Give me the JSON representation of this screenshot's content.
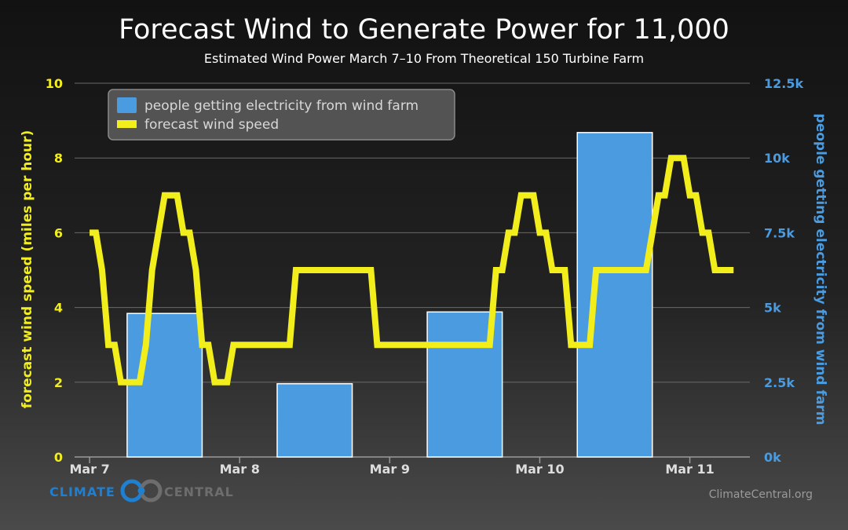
{
  "chart_data": {
    "type": "bar+line",
    "title": "Forecast Wind to Generate Power for 11,000",
    "subtitle": "Estimated Wind Power March 7–10 From Theoretical 150 Turbine Farm",
    "left_axis": {
      "label": "forecast wind speed (miles per hour)",
      "range": [
        0,
        10
      ],
      "ticks": [
        "0",
        "2",
        "4",
        "6",
        "8",
        "10"
      ],
      "color": "#f2ee1c"
    },
    "right_axis": {
      "label": "people getting electricity from wind farm",
      "range": [
        0,
        12500
      ],
      "ticks": [
        "0k",
        "2.5k",
        "5k",
        "7.5k",
        "10k",
        "12.5k"
      ],
      "color": "#4a9be0"
    },
    "x_axis": {
      "range_days": [
        6.9,
        11.4
      ],
      "ticks": [
        "Mar 7",
        "Mar 8",
        "Mar 9",
        "Mar 10",
        "Mar 11"
      ]
    },
    "grid": true,
    "legend": {
      "placement": "top-left",
      "items": [
        {
          "label": "people getting electricity from wind farm",
          "kind": "bar",
          "color": "#4a9be0"
        },
        {
          "label": "forecast wind speed",
          "kind": "line",
          "color": "#f2ee1c"
        }
      ]
    },
    "bars": {
      "name": "people getting electricity from wind farm",
      "color": "#4a9be0",
      "items": [
        {
          "start": "Mar 7 06:00",
          "end": "Mar 7 18:00",
          "value": 4800
        },
        {
          "start": "Mar 8 06:00",
          "end": "Mar 8 18:00",
          "value": 2450
        },
        {
          "start": "Mar 9 06:00",
          "end": "Mar 9 18:00",
          "value": 4850
        },
        {
          "start": "Mar 10 06:00",
          "end": "Mar 10 18:00",
          "value": 10850
        }
      ]
    },
    "line": {
      "name": "forecast wind speed",
      "color": "#f2ee1c",
      "points": [
        {
          "t": "Mar 7 00:00",
          "v": 6
        },
        {
          "t": "Mar 7 01:00",
          "v": 6
        },
        {
          "t": "Mar 7 02:00",
          "v": 5
        },
        {
          "t": "Mar 7 03:00",
          "v": 3
        },
        {
          "t": "Mar 7 04:00",
          "v": 3
        },
        {
          "t": "Mar 7 05:00",
          "v": 2
        },
        {
          "t": "Mar 7 07:00",
          "v": 2
        },
        {
          "t": "Mar 7 08:00",
          "v": 2
        },
        {
          "t": "Mar 7 09:00",
          "v": 3
        },
        {
          "t": "Mar 7 10:00",
          "v": 5
        },
        {
          "t": "Mar 7 11:00",
          "v": 6
        },
        {
          "t": "Mar 7 12:00",
          "v": 7
        },
        {
          "t": "Mar 7 14:00",
          "v": 7
        },
        {
          "t": "Mar 7 15:00",
          "v": 6
        },
        {
          "t": "Mar 7 16:00",
          "v": 6
        },
        {
          "t": "Mar 7 17:00",
          "v": 5
        },
        {
          "t": "Mar 7 18:00",
          "v": 3
        },
        {
          "t": "Mar 7 19:00",
          "v": 3
        },
        {
          "t": "Mar 7 20:00",
          "v": 2
        },
        {
          "t": "Mar 7 22:00",
          "v": 2
        },
        {
          "t": "Mar 7 23:00",
          "v": 3
        },
        {
          "t": "Mar 8 08:00",
          "v": 3
        },
        {
          "t": "Mar 8 09:00",
          "v": 5
        },
        {
          "t": "Mar 8 21:00",
          "v": 5
        },
        {
          "t": "Mar 8 22:00",
          "v": 3
        },
        {
          "t": "Mar 9 16:00",
          "v": 3
        },
        {
          "t": "Mar 9 17:00",
          "v": 5
        },
        {
          "t": "Mar 9 18:00",
          "v": 5
        },
        {
          "t": "Mar 9 19:00",
          "v": 6
        },
        {
          "t": "Mar 9 20:00",
          "v": 6
        },
        {
          "t": "Mar 9 21:00",
          "v": 7
        },
        {
          "t": "Mar 9 23:00",
          "v": 7
        },
        {
          "t": "Mar 10 00:00",
          "v": 6
        },
        {
          "t": "Mar 10 01:00",
          "v": 6
        },
        {
          "t": "Mar 10 02:00",
          "v": 5
        },
        {
          "t": "Mar 10 04:00",
          "v": 5
        },
        {
          "t": "Mar 10 05:00",
          "v": 3
        },
        {
          "t": "Mar 10 08:00",
          "v": 3
        },
        {
          "t": "Mar 10 09:00",
          "v": 5
        },
        {
          "t": "Mar 10 17:00",
          "v": 5
        },
        {
          "t": "Mar 10 18:00",
          "v": 6
        },
        {
          "t": "Mar 10 19:00",
          "v": 7
        },
        {
          "t": "Mar 10 20:00",
          "v": 7
        },
        {
          "t": "Mar 10 21:00",
          "v": 8
        },
        {
          "t": "Mar 10 23:00",
          "v": 8
        },
        {
          "t": "Mar 11 00:00",
          "v": 7
        },
        {
          "t": "Mar 11 01:00",
          "v": 7
        },
        {
          "t": "Mar 11 02:00",
          "v": 6
        },
        {
          "t": "Mar 11 03:00",
          "v": 6
        },
        {
          "t": "Mar 11 04:00",
          "v": 5
        },
        {
          "t": "Mar 11 07:00",
          "v": 5
        }
      ]
    }
  },
  "branding": {
    "logo_left": "CLIMATE",
    "logo_right": "CENTRAL",
    "website": "ClimateCentral.org"
  },
  "colors": {
    "wind_line": "#f2ee1c",
    "bars": "#4a9be0",
    "logo_blue": "#1f7fd1",
    "logo_gray": "#6d6d6d",
    "grid": "#6a6a6a"
  }
}
